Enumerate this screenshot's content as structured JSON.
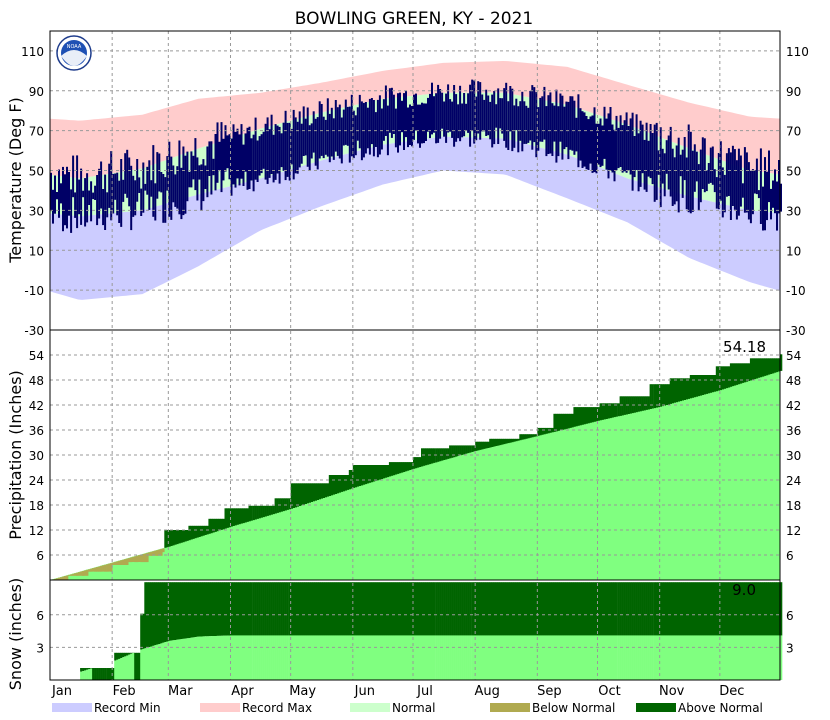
{
  "title": "BOWLING GREEN, KY - 2021",
  "logo_text": "NOAA",
  "colors": {
    "record_min": "#ccccff",
    "record_max": "#ffcccc",
    "normal_band": "#ccffcc",
    "observed": "#000066",
    "normal_precip": "#80ff80",
    "above_normal": "#006400",
    "below_normal": "#b0aa50",
    "grid": "#999999"
  },
  "chart_data": [
    {
      "type": "area",
      "panel": "temperature",
      "ylabel": "Temperature (Deg F)",
      "ylim": [
        -30,
        120
      ],
      "yticks": [
        -30,
        -10,
        10,
        30,
        50,
        70,
        90,
        110
      ],
      "months": [
        "Jan",
        "Feb",
        "Mar",
        "Apr",
        "May",
        "Jun",
        "Jul",
        "Aug",
        "Sep",
        "Oct",
        "Nov",
        "Dec"
      ],
      "month_day": [
        1,
        32,
        60,
        91,
        121,
        152,
        182,
        213,
        244,
        274,
        305,
        335
      ],
      "normal_high_monthly": [
        46,
        51,
        61,
        71,
        79,
        86,
        89,
        89,
        83,
        73,
        61,
        50
      ],
      "normal_low_monthly": [
        27,
        30,
        38,
        46,
        55,
        63,
        67,
        66,
        58,
        46,
        37,
        30
      ],
      "record_high_monthly": [
        75,
        78,
        86,
        89,
        94,
        100,
        104,
        105,
        102,
        93,
        84,
        77
      ],
      "record_low_monthly": [
        -15,
        -12,
        2,
        20,
        32,
        43,
        50,
        48,
        36,
        24,
        6,
        -6
      ],
      "series": [
        {
          "name": "Record Min"
        },
        {
          "name": "Record Max"
        },
        {
          "name": "Normal"
        },
        {
          "name": "Below Normal"
        },
        {
          "name": "Above Normal"
        }
      ]
    },
    {
      "type": "area",
      "panel": "precipitation",
      "ylabel": "Precipitation (Inches)",
      "ylim": [
        0,
        60
      ],
      "yticks": [
        6,
        12,
        18,
        24,
        30,
        36,
        42,
        48,
        54
      ],
      "total_label": "54.18",
      "normal_cumulative": {
        "day": [
          1,
          32,
          60,
          91,
          121,
          152,
          182,
          213,
          244,
          274,
          305,
          335,
          365
        ],
        "inches": [
          0,
          4.2,
          8.0,
          12.8,
          17.1,
          22.1,
          26.7,
          31.0,
          34.6,
          38.2,
          41.6,
          45.6,
          50.2
        ]
      },
      "observed_cumulative": {
        "day": [
          1,
          10,
          20,
          32,
          40,
          50,
          57,
          58,
          70,
          80,
          88,
          100,
          113,
          121,
          140,
          150,
          152,
          170,
          182,
          186,
          200,
          213,
          220,
          235,
          244,
          252,
          262,
          275,
          285,
          300,
          310,
          320,
          333,
          340,
          350,
          365
        ],
        "inches": [
          0,
          1.0,
          2.0,
          3.6,
          4.3,
          5.8,
          6.7,
          12.0,
          13.0,
          14.7,
          17.2,
          17.8,
          19.6,
          23.2,
          25.2,
          26.4,
          27.6,
          28.3,
          29.5,
          31.6,
          32.3,
          33.2,
          33.9,
          35.0,
          36.5,
          39.9,
          41.5,
          42.4,
          44.1,
          47.0,
          48.4,
          49.2,
          51.3,
          52.0,
          53.2,
          54.18
        ]
      }
    },
    {
      "type": "area",
      "panel": "snow",
      "ylabel": "Snow (inches)",
      "ylim": [
        0,
        9.2
      ],
      "yticks": [
        3,
        6
      ],
      "total_label": "9.0",
      "normal_cumulative": {
        "day": [
          1,
          15,
          32,
          46,
          60,
          75,
          91
        ],
        "inches": [
          0,
          0.7,
          1.7,
          2.8,
          3.6,
          4.0,
          4.1
        ]
      },
      "observed_cumulative": {
        "day": [
          1,
          16,
          32,
          33,
          45,
          46,
          48,
          365
        ],
        "inches": [
          0,
          1.1,
          1.1,
          2.5,
          2.5,
          6.1,
          9.0,
          9.0
        ]
      }
    }
  ],
  "legend": [
    {
      "label": "Record Min",
      "color": "#ccccff"
    },
    {
      "label": "Record Max",
      "color": "#ffcccc"
    },
    {
      "label": "Normal",
      "color": "#ccffcc"
    },
    {
      "label": "Below Normal",
      "color": "#b0aa50"
    },
    {
      "label": "Above Normal",
      "color": "#006400"
    }
  ]
}
